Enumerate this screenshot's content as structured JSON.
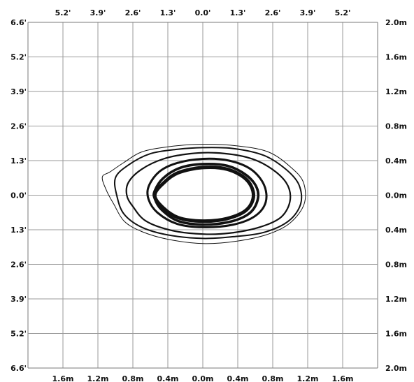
{
  "chart_data": {
    "type": "isolux-contour",
    "top_ticks_ft": [
      "5.2'",
      "3.9'",
      "2.6'",
      "1.3'",
      "0.0'",
      "1.3'",
      "2.6'",
      "3.9'",
      "5.2'"
    ],
    "bottom_ticks_m": [
      "1.6m",
      "1.2m",
      "0.8m",
      "0.4m",
      "0.0m",
      "0.4m",
      "0.8m",
      "1.2m",
      "1.6m"
    ],
    "left_ticks_ft": [
      "6.6'",
      "5.2'",
      "3.9'",
      "2.6'",
      "1.3'",
      "0.0'",
      "1.3'",
      "2.6'",
      "3.9'",
      "5.2'",
      "6.6'"
    ],
    "right_ticks_m": [
      "2.0m",
      "1.6m",
      "1.2m",
      "0.8m",
      "0.4m",
      "0.0m",
      "0.4m",
      "0.8m",
      "1.2m",
      "1.6m",
      "2.0m"
    ],
    "x_range_m": [
      -2.0,
      2.0
    ],
    "y_range_m": [
      -2.0,
      2.0
    ],
    "contours": [
      {
        "level": 1,
        "stroke": 1.0,
        "points": [
          [
            -1.15,
            0.21
          ],
          [
            -1.06,
            0.27
          ],
          [
            -0.9,
            0.38
          ],
          [
            -0.7,
            0.5
          ],
          [
            -0.4,
            0.56
          ],
          [
            0,
            0.59
          ],
          [
            0.4,
            0.57
          ],
          [
            0.75,
            0.5
          ],
          [
            1,
            0.33
          ],
          [
            1.15,
            0.15
          ],
          [
            1.16,
            -0.1
          ],
          [
            1.0,
            -0.32
          ],
          [
            0.75,
            -0.45
          ],
          [
            0.4,
            -0.53
          ],
          [
            0,
            -0.56
          ],
          [
            -0.4,
            -0.51
          ],
          [
            -0.7,
            -0.42
          ],
          [
            -0.9,
            -0.3
          ],
          [
            -1.02,
            -0.1
          ],
          [
            -1.1,
            0.05
          ]
        ]
      },
      {
        "level": 2,
        "stroke": 2.0,
        "points": [
          [
            -1.0,
            0.2
          ],
          [
            -0.85,
            0.35
          ],
          [
            -0.6,
            0.48
          ],
          [
            -0.3,
            0.53
          ],
          [
            0,
            0.55
          ],
          [
            0.35,
            0.54
          ],
          [
            0.7,
            0.46
          ],
          [
            0.95,
            0.3
          ],
          [
            1.1,
            0.12
          ],
          [
            1.12,
            -0.1
          ],
          [
            0.98,
            -0.3
          ],
          [
            0.7,
            -0.43
          ],
          [
            0.35,
            -0.48
          ],
          [
            0,
            -0.5
          ],
          [
            -0.4,
            -0.46
          ],
          [
            -0.7,
            -0.37
          ],
          [
            -0.9,
            -0.22
          ],
          [
            -0.98,
            -0.02
          ]
        ]
      },
      {
        "level": 3,
        "stroke": 2.2,
        "points": [
          [
            -0.85,
            0.15
          ],
          [
            -0.7,
            0.3
          ],
          [
            -0.45,
            0.42
          ],
          [
            -0.15,
            0.48
          ],
          [
            0.15,
            0.49
          ],
          [
            0.5,
            0.44
          ],
          [
            0.75,
            0.33
          ],
          [
            0.95,
            0.15
          ],
          [
            1.0,
            -0.05
          ],
          [
            0.9,
            -0.25
          ],
          [
            0.65,
            -0.37
          ],
          [
            0.3,
            -0.44
          ],
          [
            0,
            -0.45
          ],
          [
            -0.35,
            -0.41
          ],
          [
            -0.65,
            -0.3
          ],
          [
            -0.8,
            -0.13
          ],
          [
            -0.87,
            0.0
          ]
        ]
      },
      {
        "level": 4,
        "stroke": 3.0,
        "points": [
          [
            -0.62,
            0.1
          ],
          [
            -0.5,
            0.27
          ],
          [
            -0.3,
            0.37
          ],
          [
            0,
            0.42
          ],
          [
            0.3,
            0.4
          ],
          [
            0.55,
            0.3
          ],
          [
            0.7,
            0.12
          ],
          [
            0.72,
            -0.08
          ],
          [
            0.6,
            -0.24
          ],
          [
            0.35,
            -0.34
          ],
          [
            0,
            -0.37
          ],
          [
            -0.3,
            -0.33
          ],
          [
            -0.52,
            -0.2
          ],
          [
            -0.62,
            -0.05
          ]
        ]
      },
      {
        "level": 5,
        "stroke": 3.6,
        "points": [
          [
            -0.55,
            0.05
          ],
          [
            -0.45,
            0.2
          ],
          [
            -0.25,
            0.32
          ],
          [
            0,
            0.36
          ],
          [
            0.28,
            0.34
          ],
          [
            0.5,
            0.23
          ],
          [
            0.62,
            0.08
          ],
          [
            0.62,
            -0.08
          ],
          [
            0.52,
            -0.22
          ],
          [
            0.3,
            -0.31
          ],
          [
            0,
            -0.34
          ],
          [
            -0.28,
            -0.3
          ],
          [
            -0.47,
            -0.17
          ],
          [
            -0.55,
            -0.04
          ]
        ]
      },
      {
        "level": 6,
        "stroke": 5.0,
        "points": [
          [
            -0.55,
            0.0
          ],
          [
            -0.45,
            0.14
          ],
          [
            -0.28,
            0.26
          ],
          [
            0,
            0.32
          ],
          [
            0.28,
            0.3
          ],
          [
            0.5,
            0.18
          ],
          [
            0.58,
            0.0
          ],
          [
            0.5,
            -0.17
          ],
          [
            0.28,
            -0.27
          ],
          [
            0,
            -0.3
          ],
          [
            -0.28,
            -0.26
          ],
          [
            -0.46,
            -0.14
          ]
        ]
      }
    ]
  }
}
